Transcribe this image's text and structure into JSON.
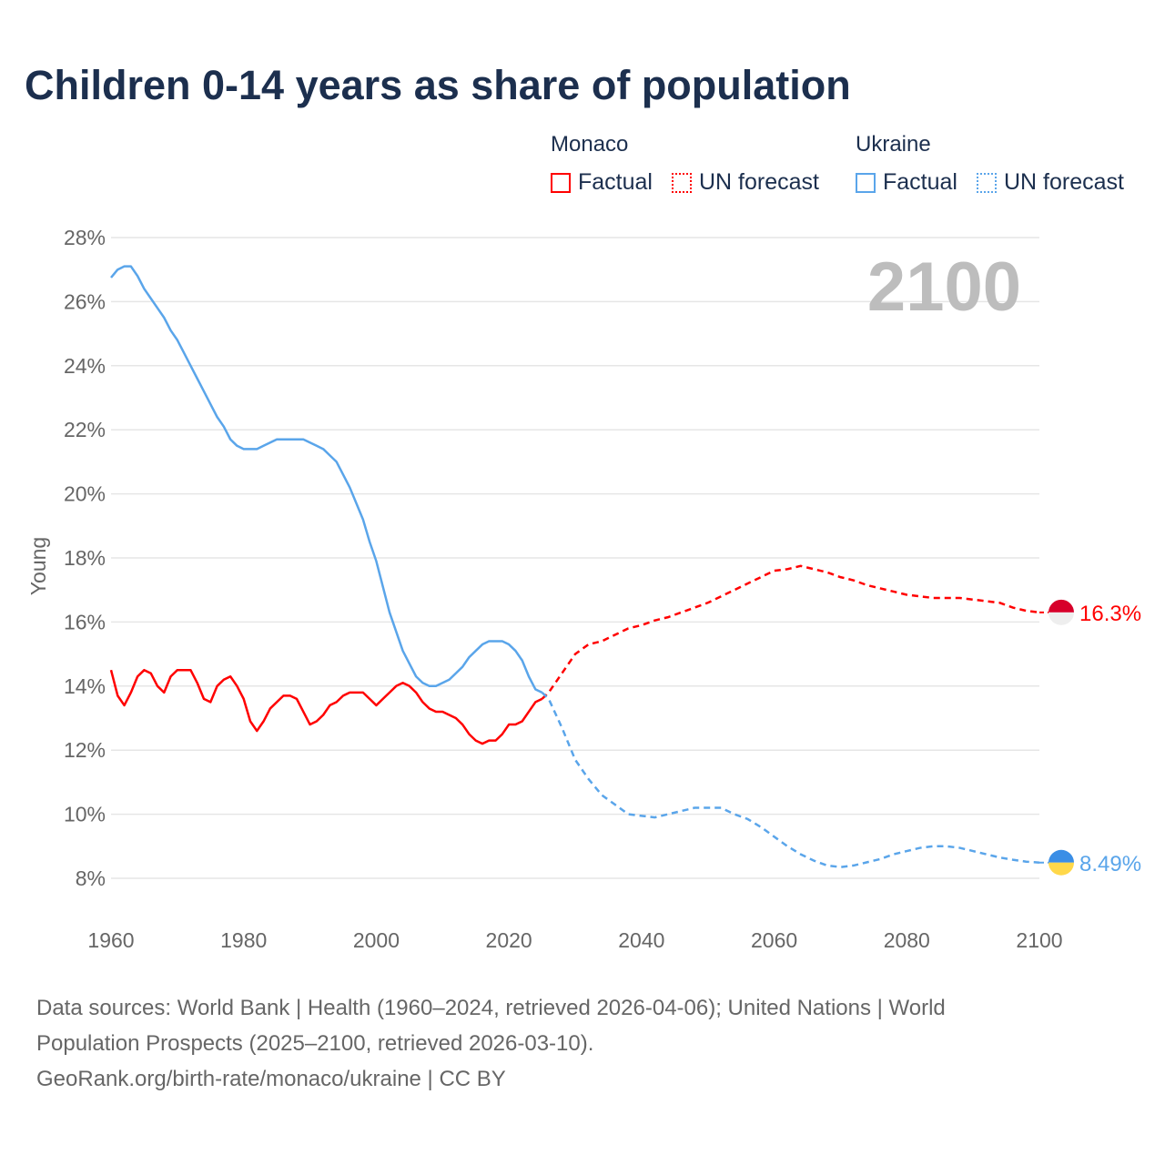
{
  "title": "Children 0-14 years as share of population",
  "highlight_year": "2100",
  "legend": {
    "groups": [
      {
        "country": "Monaco",
        "factual": "Factual",
        "forecast": "UN forecast",
        "color": "#ff0000"
      },
      {
        "country": "Ukraine",
        "factual": "Factual",
        "forecast": "UN forecast",
        "color": "#5aa5ea"
      }
    ]
  },
  "footer": {
    "line1": "Data sources: World Bank | Health (1960–2024, retrieved 2026-04-06); United Nations | World",
    "line2": "Population Prospects (2025–2100, retrieved 2026-03-10).",
    "line3": "GeoRank.org/birth-rate/monaco/ukraine | CC BY"
  },
  "chart_data": {
    "type": "line",
    "title": "Children 0-14 years as share of population",
    "xlabel": "",
    "ylabel": "Young",
    "xlim": [
      1960,
      2100
    ],
    "ylim": [
      7,
      28
    ],
    "x_ticks": [
      "1960",
      "1980",
      "2000",
      "2020",
      "2040",
      "2060",
      "2080",
      "2100"
    ],
    "y_ticks": [
      "8%",
      "10%",
      "12%",
      "14%",
      "16%",
      "18%",
      "20%",
      "22%",
      "24%",
      "26%",
      "28%"
    ],
    "grid": true,
    "legend_placement": "top-right",
    "series": [
      {
        "name": "Monaco",
        "color": "#ff0000",
        "flag_colors": [
          "#d7002a",
          "#eeeeee"
        ],
        "end_label": "16.3%",
        "factual": {
          "start_year": 1960,
          "values": [
            14.5,
            13.7,
            13.4,
            13.8,
            14.3,
            14.5,
            14.4,
            14.0,
            13.8,
            14.3,
            14.5,
            14.5,
            14.5,
            14.1,
            13.6,
            13.5,
            14.0,
            14.2,
            14.3,
            14.0,
            13.6,
            12.9,
            12.6,
            12.9,
            13.3,
            13.5,
            13.7,
            13.7,
            13.6,
            13.2,
            12.8,
            12.9,
            13.1,
            13.4,
            13.5,
            13.7,
            13.8,
            13.8,
            13.8,
            13.6,
            13.4,
            13.6,
            13.8,
            14.0,
            14.1,
            14.0,
            13.8,
            13.5,
            13.3,
            13.2,
            13.2,
            13.1,
            13.0,
            12.8,
            12.5,
            12.3,
            12.2,
            12.3,
            12.3,
            12.5,
            12.8,
            12.8,
            12.9,
            13.2,
            13.5,
            13.6
          ]
        },
        "forecast": {
          "x": [
            2025,
            2026,
            2028,
            2030,
            2032,
            2034,
            2036,
            2038,
            2040,
            2042,
            2044,
            2046,
            2048,
            2050,
            2052,
            2054,
            2056,
            2058,
            2060,
            2062,
            2064,
            2066,
            2068,
            2070,
            2072,
            2074,
            2076,
            2078,
            2080,
            2082,
            2084,
            2086,
            2088,
            2090,
            2092,
            2094,
            2096,
            2098,
            2100
          ],
          "y": [
            13.6,
            13.8,
            14.4,
            15.0,
            15.3,
            15.4,
            15.6,
            15.8,
            15.9,
            16.05,
            16.15,
            16.3,
            16.45,
            16.6,
            16.8,
            17.0,
            17.2,
            17.4,
            17.6,
            17.65,
            17.75,
            17.65,
            17.55,
            17.4,
            17.3,
            17.15,
            17.05,
            16.95,
            16.85,
            16.8,
            16.75,
            16.75,
            16.75,
            16.7,
            16.65,
            16.6,
            16.45,
            16.35,
            16.3
          ]
        }
      },
      {
        "name": "Ukraine",
        "color": "#5aa5ea",
        "flag_colors": [
          "#3a8ee6",
          "#ffd84a"
        ],
        "end_label": "8.49%",
        "factual": {
          "start_year": 1960,
          "values": [
            26.75,
            27.0,
            27.1,
            27.1,
            26.8,
            26.4,
            26.1,
            25.8,
            25.5,
            25.1,
            24.8,
            24.4,
            24.0,
            23.6,
            23.2,
            22.8,
            22.4,
            22.1,
            21.7,
            21.5,
            21.4,
            21.4,
            21.4,
            21.5,
            21.6,
            21.7,
            21.7,
            21.7,
            21.7,
            21.7,
            21.6,
            21.5,
            21.4,
            21.2,
            21.0,
            20.6,
            20.2,
            19.7,
            19.2,
            18.5,
            17.9,
            17.1,
            16.3,
            15.7,
            15.1,
            14.7,
            14.3,
            14.1,
            14.0,
            14.0,
            14.1,
            14.2,
            14.4,
            14.6,
            14.9,
            15.1,
            15.3,
            15.4,
            15.4,
            15.4,
            15.3,
            15.1,
            14.8,
            14.3,
            13.9,
            13.8
          ]
        },
        "forecast": {
          "x": [
            2025,
            2026,
            2028,
            2030,
            2032,
            2034,
            2036,
            2038,
            2040,
            2042,
            2044,
            2046,
            2048,
            2050,
            2052,
            2054,
            2056,
            2058,
            2060,
            2062,
            2064,
            2066,
            2068,
            2070,
            2072,
            2074,
            2076,
            2078,
            2080,
            2082,
            2084,
            2086,
            2088,
            2090,
            2092,
            2094,
            2096,
            2098,
            2100
          ],
          "y": [
            13.8,
            13.6,
            12.7,
            11.7,
            11.1,
            10.6,
            10.3,
            10.0,
            9.95,
            9.9,
            10.0,
            10.1,
            10.2,
            10.2,
            10.2,
            10.0,
            9.85,
            9.6,
            9.3,
            9.0,
            8.75,
            8.55,
            8.4,
            8.35,
            8.4,
            8.5,
            8.6,
            8.75,
            8.85,
            8.95,
            9.0,
            9.0,
            8.95,
            8.85,
            8.75,
            8.65,
            8.58,
            8.52,
            8.49
          ]
        }
      }
    ]
  }
}
